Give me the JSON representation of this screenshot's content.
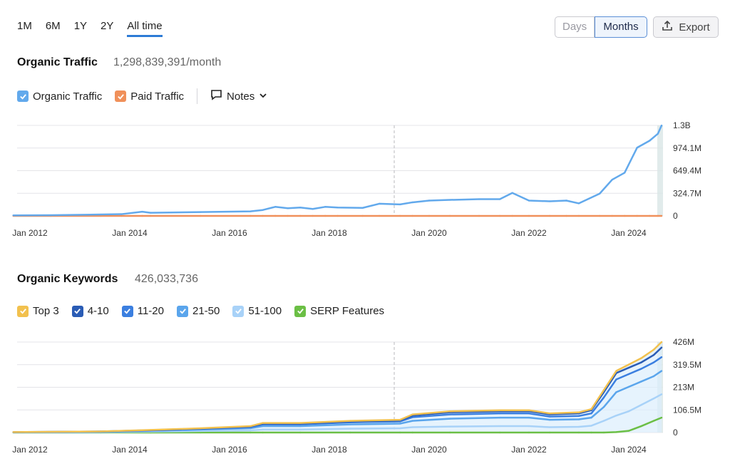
{
  "range_tabs": [
    "1M",
    "6M",
    "1Y",
    "2Y",
    "All time"
  ],
  "active_range": "All time",
  "view_toggle": {
    "days": "Days",
    "months": "Months"
  },
  "export_label": "Export",
  "traffic": {
    "title": "Organic Traffic",
    "value": "1,298,839,391/month",
    "legend": {
      "organic": "Organic Traffic",
      "paid": "Paid Traffic",
      "notes": "Notes"
    }
  },
  "keywords": {
    "title": "Organic Keywords",
    "value": "426,033,736",
    "legend": [
      "Top 3",
      "4-10",
      "11-20",
      "21-50",
      "51-100",
      "SERP Features"
    ]
  },
  "colors": {
    "organic": "#62a9ec",
    "paid": "#f0905a",
    "top3": "#f2c14e",
    "k4_10": "#2a5cb5",
    "k11_20": "#3b7fe0",
    "k21_50": "#5aa5ec",
    "k51_100": "#a8d2f8",
    "serp": "#6bbf45",
    "active_tab": "#2d7bd6"
  },
  "chart_data": [
    {
      "type": "line",
      "title": "Organic Traffic",
      "x_ticks": [
        "Jan 2012",
        "Jan 2014",
        "Jan 2016",
        "Jan 2018",
        "Jan 2020",
        "Jan 2022",
        "Jan 2024"
      ],
      "y_ticks": [
        "1.3B",
        "974.1M",
        "649.4M",
        "324.7M",
        "0"
      ],
      "ylim": [
        0,
        1300000000
      ],
      "x": [
        "2011-09",
        "2012-06",
        "2013-06",
        "2013-11",
        "2014-04",
        "2014-06",
        "2015-06",
        "2016-06",
        "2016-09",
        "2016-12",
        "2017-03",
        "2017-06",
        "2017-09",
        "2017-12",
        "2018-03",
        "2018-09",
        "2019-01",
        "2019-06",
        "2019-09",
        "2020-01",
        "2020-06",
        "2021-01",
        "2021-06",
        "2021-09",
        "2022-01",
        "2022-06",
        "2022-10",
        "2023-01",
        "2023-06",
        "2023-09",
        "2023-12",
        "2024-03",
        "2024-06",
        "2024-08",
        "2024-10"
      ],
      "series": [
        {
          "name": "Organic Traffic",
          "values": [
            8000000,
            10000000,
            20000000,
            25000000,
            60000000,
            45000000,
            55000000,
            65000000,
            85000000,
            130000000,
            110000000,
            120000000,
            100000000,
            130000000,
            120000000,
            115000000,
            175000000,
            165000000,
            195000000,
            220000000,
            230000000,
            240000000,
            240000000,
            330000000,
            220000000,
            210000000,
            220000000,
            180000000,
            320000000,
            520000000,
            620000000,
            980000000,
            1080000000,
            1180000000,
            1298839391
          ]
        },
        {
          "name": "Paid Traffic",
          "values": [
            0,
            0,
            0,
            0,
            0,
            0,
            0,
            0,
            0,
            0,
            0,
            0,
            0,
            0,
            0,
            0,
            0,
            0,
            0,
            0,
            0,
            0,
            0,
            0,
            0,
            0,
            0,
            0,
            0,
            0,
            0,
            0,
            0,
            0,
            0
          ]
        }
      ]
    },
    {
      "type": "line",
      "title": "Organic Keywords",
      "x_ticks": [
        "Jan 2012",
        "Jan 2014",
        "Jan 2016",
        "Jan 2018",
        "Jan 2020",
        "Jan 2022",
        "Jan 2024"
      ],
      "y_ticks": [
        "426M",
        "319.5M",
        "213M",
        "106.5M",
        "0"
      ],
      "ylim": [
        0,
        426000000
      ],
      "x": [
        "2011-09",
        "2013-06",
        "2014-06",
        "2015-06",
        "2016-06",
        "2016-09",
        "2017-06",
        "2018-06",
        "2019-06",
        "2019-09",
        "2020-06",
        "2021-06",
        "2022-01",
        "2022-06",
        "2023-01",
        "2023-04",
        "2023-07",
        "2023-10",
        "2024-01",
        "2024-04",
        "2024-07",
        "2024-10"
      ],
      "series": [
        {
          "name": "Top 3",
          "values": [
            2000000,
            5000000,
            12000000,
            20000000,
            30000000,
            45000000,
            45000000,
            55000000,
            60000000,
            85000000,
            100000000,
            105000000,
            105000000,
            90000000,
            95000000,
            110000000,
            200000000,
            290000000,
            320000000,
            350000000,
            390000000,
            426033736
          ]
        },
        {
          "name": "4-10",
          "values": [
            2000000,
            5000000,
            11000000,
            19000000,
            28000000,
            42000000,
            42000000,
            52000000,
            57000000,
            80000000,
            95000000,
            100000000,
            100000000,
            85000000,
            90000000,
            105000000,
            190000000,
            280000000,
            305000000,
            330000000,
            365000000,
            400000000
          ]
        },
        {
          "name": "11-20",
          "values": [
            1500000,
            4000000,
            10000000,
            17000000,
            25000000,
            38000000,
            38000000,
            48000000,
            52000000,
            72000000,
            85000000,
            90000000,
            90000000,
            75000000,
            78000000,
            90000000,
            165000000,
            250000000,
            275000000,
            300000000,
            330000000,
            355000000
          ]
        },
        {
          "name": "21-50",
          "values": [
            1000000,
            3000000,
            8000000,
            14000000,
            20000000,
            30000000,
            30000000,
            38000000,
            42000000,
            55000000,
            65000000,
            70000000,
            70000000,
            60000000,
            62000000,
            70000000,
            120000000,
            190000000,
            215000000,
            240000000,
            265000000,
            290000000
          ]
        },
        {
          "name": "51-100",
          "values": [
            500000,
            1500000,
            4000000,
            7000000,
            10000000,
            14000000,
            14000000,
            18000000,
            20000000,
            25000000,
            28000000,
            30000000,
            30000000,
            25000000,
            27000000,
            32000000,
            55000000,
            80000000,
            100000000,
            130000000,
            160000000,
            180000000
          ]
        },
        {
          "name": "SERP Features",
          "values": [
            0,
            0,
            0,
            0,
            0,
            0,
            0,
            0,
            0,
            0,
            0,
            0,
            0,
            0,
            0,
            0,
            0,
            2000000,
            8000000,
            30000000,
            55000000,
            70000000
          ]
        }
      ]
    }
  ]
}
